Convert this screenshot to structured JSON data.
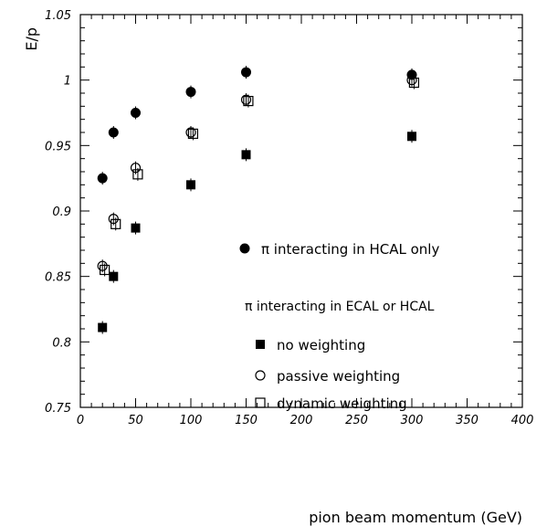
{
  "chart_data": {
    "type": "scatter",
    "title": "",
    "xlabel": "pion beam momentum (GeV)",
    "ylabel": "E/p",
    "xlim": [
      0,
      400
    ],
    "ylim": [
      0.75,
      1.05
    ],
    "x_ticks": [
      0,
      50,
      100,
      150,
      200,
      250,
      300,
      350,
      400
    ],
    "x_tick_labels": [
      "0",
      "50",
      "100",
      "150",
      "200",
      "250",
      "300",
      "350",
      "400"
    ],
    "y_ticks": [
      0.75,
      0.8,
      0.85,
      0.9,
      0.95,
      1.0,
      1.05
    ],
    "y_tick_labels": [
      "0.75",
      "0.8",
      "0.85",
      "0.9",
      "0.95",
      "1",
      "1.05"
    ],
    "grid": false,
    "legend_position": "center-right",
    "legend_group_title": "π interacting in ECAL or HCAL",
    "series": [
      {
        "name": "π interacting in HCAL only",
        "marker": "filled-circle",
        "x": [
          20,
          30,
          50,
          100,
          150,
          300
        ],
        "y": [
          0.925,
          0.96,
          0.975,
          0.991,
          1.006,
          1.004
        ]
      },
      {
        "name": "no weighting",
        "marker": "filled-square",
        "x": [
          20,
          30,
          50,
          100,
          150,
          300
        ],
        "y": [
          0.811,
          0.85,
          0.887,
          0.92,
          0.943,
          0.957
        ]
      },
      {
        "name": "passive weighting",
        "marker": "open-circle",
        "x": [
          20,
          30,
          50,
          100,
          150,
          300
        ],
        "y": [
          0.858,
          0.894,
          0.933,
          0.96,
          0.985,
          1.0
        ]
      },
      {
        "name": "dynamic  weighting",
        "marker": "open-square",
        "x": [
          22,
          32,
          52,
          102,
          152,
          302
        ],
        "y": [
          0.855,
          0.89,
          0.928,
          0.959,
          0.984,
          0.998
        ]
      }
    ]
  }
}
